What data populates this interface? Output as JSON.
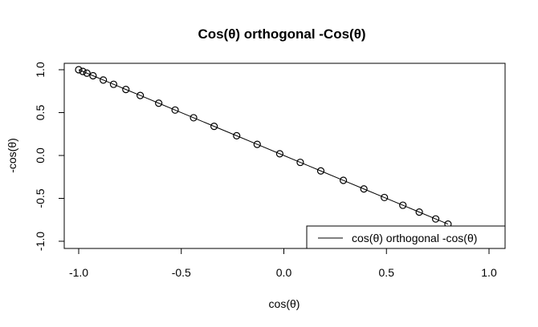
{
  "chart_data": {
    "type": "line",
    "title": "Cos(θ) orthogonal -Cos(θ)",
    "xlabel": "cos(θ)",
    "ylabel": "-cos(θ)",
    "xlim": [
      -1.0,
      1.0
    ],
    "ylim": [
      -1.0,
      1.0
    ],
    "x_ticks": [
      "-1.0",
      "-0.5",
      "0.0",
      "0.5",
      "1.0"
    ],
    "y_ticks": [
      "-1.0",
      "-0.5",
      "0.0",
      "0.5",
      "1.0"
    ],
    "grid": false,
    "legend_position": "bottom-right",
    "series": [
      {
        "name": "cos(θ) orthogonal -cos(θ)",
        "color": "#000000",
        "markers": "open-circle",
        "x": [
          -1.0,
          -0.98,
          -0.96,
          -0.93,
          -0.88,
          -0.83,
          -0.77,
          -0.7,
          -0.61,
          -0.53,
          -0.44,
          -0.34,
          -0.23,
          -0.13,
          -0.02,
          0.08,
          0.18,
          0.29,
          0.39,
          0.49,
          0.58,
          0.66,
          0.74,
          0.8
        ],
        "y": [
          1.0,
          0.98,
          0.96,
          0.93,
          0.88,
          0.83,
          0.77,
          0.7,
          0.61,
          0.53,
          0.44,
          0.34,
          0.23,
          0.13,
          0.02,
          -0.08,
          -0.18,
          -0.29,
          -0.39,
          -0.49,
          -0.58,
          -0.66,
          -0.74,
          -0.8
        ]
      }
    ]
  }
}
